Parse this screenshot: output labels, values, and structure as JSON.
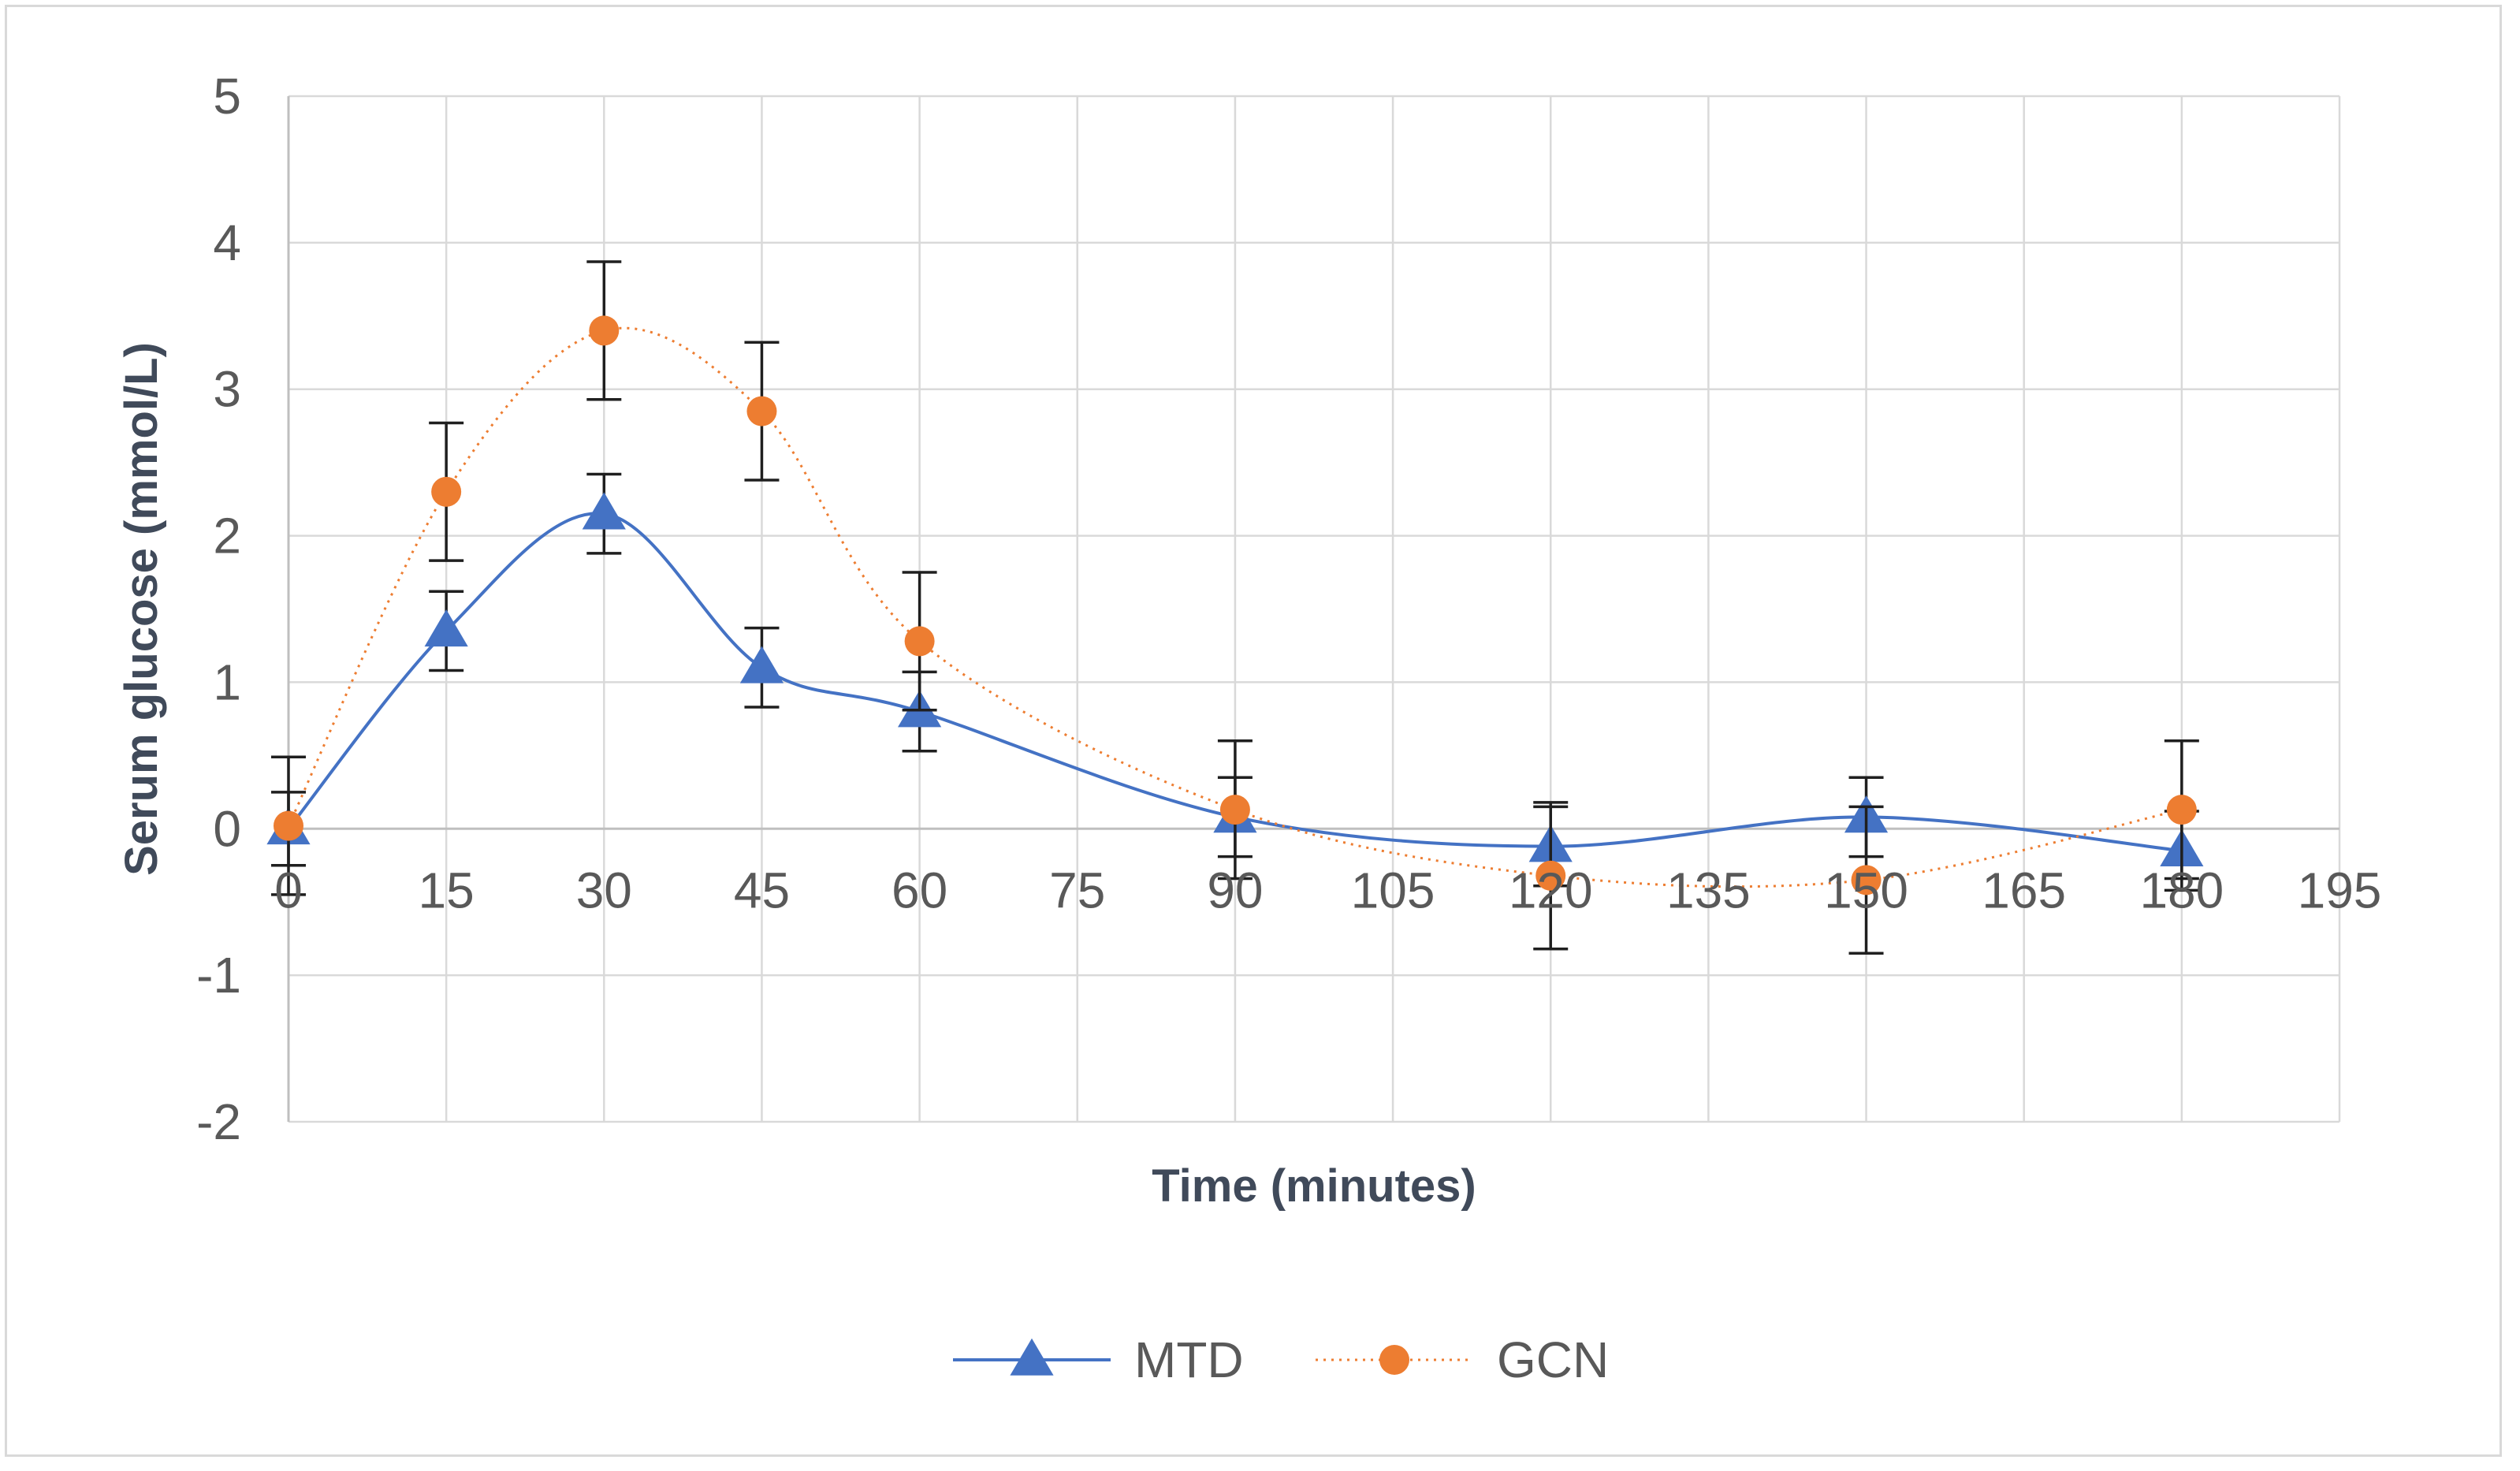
{
  "chart_data": {
    "type": "line",
    "title": "",
    "xlabel": "Time (minutes)",
    "ylabel": "Serum  glucose (mmol/L)",
    "xlim": [
      0,
      195
    ],
    "ylim": [
      -2,
      5
    ],
    "xticks": [
      0,
      15,
      30,
      45,
      60,
      75,
      90,
      105,
      120,
      135,
      150,
      165,
      180,
      195
    ],
    "yticks": [
      -2,
      -1,
      0,
      1,
      2,
      3,
      4,
      5
    ],
    "grid": true,
    "legend_position": "bottom-center",
    "series": [
      {
        "name": "MTD",
        "marker": "triangle",
        "line_style": "solid",
        "color": "#4472c4",
        "x": [
          0,
          15,
          30,
          45,
          60,
          90,
          120,
          150,
          180
        ],
        "y": [
          0.0,
          1.35,
          2.15,
          1.1,
          0.8,
          0.08,
          -0.12,
          0.08,
          -0.15
        ],
        "error": [
          0.25,
          0.27,
          0.27,
          0.27,
          0.27,
          0.27,
          0.27,
          0.27,
          0.27
        ]
      },
      {
        "name": "GCN",
        "marker": "circle",
        "line_style": "dotted",
        "color": "#ed7d31",
        "x": [
          0,
          15,
          30,
          45,
          60,
          90,
          120,
          150,
          180
        ],
        "y": [
          0.02,
          2.3,
          3.4,
          2.85,
          1.28,
          0.13,
          -0.32,
          -0.35,
          0.13
        ],
        "error": [
          0.47,
          0.47,
          0.47,
          0.47,
          0.47,
          0.47,
          0.5,
          0.5,
          0.47
        ]
      }
    ]
  }
}
